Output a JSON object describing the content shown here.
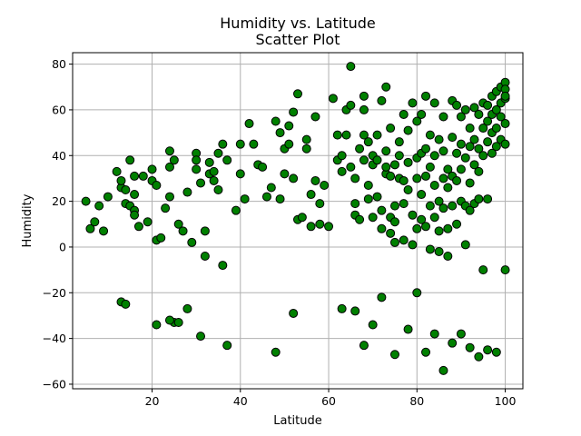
{
  "chart_data": {
    "type": "scatter",
    "title": "Humidity vs. Latitude",
    "subtitle": "Scatter Plot",
    "xlabel": "Latitude",
    "ylabel": "Humidity",
    "xlim": [
      2,
      104
    ],
    "ylim": [
      -62,
      85
    ],
    "xticks": [
      20,
      40,
      60,
      80,
      100
    ],
    "yticks": [
      -60,
      -40,
      -20,
      0,
      20,
      40,
      60,
      80
    ],
    "grid": true,
    "marker_color": "#008000",
    "marker_edge": "#000000",
    "x": [
      5,
      6,
      7,
      8,
      9,
      10,
      12,
      13,
      13,
      14,
      14,
      15,
      15,
      16,
      16,
      16,
      16,
      17,
      18,
      19,
      20,
      20,
      21,
      21,
      22,
      23,
      24,
      24,
      24,
      25,
      25,
      26,
      27,
      28,
      29,
      30,
      30,
      30,
      31,
      32,
      33,
      33,
      34,
      34,
      35,
      35,
      36,
      37,
      39,
      40,
      40,
      41,
      42,
      43,
      44,
      45,
      46,
      47,
      48,
      49,
      49,
      50,
      50,
      51,
      51,
      52,
      52,
      53,
      53,
      54,
      55,
      55,
      56,
      56,
      57,
      57,
      58,
      58,
      59,
      60,
      61,
      62,
      62,
      63,
      63,
      64,
      64,
      65,
      65,
      65,
      66,
      66,
      66,
      67,
      67,
      68,
      68,
      68,
      68,
      69,
      69,
      69,
      70,
      70,
      70,
      71,
      71,
      71,
      72,
      72,
      72,
      73,
      73,
      73,
      73,
      74,
      74,
      74,
      74,
      75,
      75,
      75,
      75,
      76,
      76,
      76,
      77,
      77,
      77,
      77,
      78,
      78,
      78,
      79,
      79,
      79,
      80,
      80,
      80,
      80,
      81,
      81,
      81,
      81,
      82,
      82,
      82,
      82,
      83,
      83,
      83,
      83,
      84,
      84,
      84,
      84,
      85,
      85,
      85,
      85,
      86,
      86,
      86,
      86,
      87,
      87,
      87,
      87,
      88,
      88,
      88,
      88,
      89,
      89,
      89,
      89,
      90,
      90,
      90,
      90,
      91,
      91,
      91,
      91,
      92,
      92,
      92,
      92,
      93,
      93,
      93,
      93,
      94,
      94,
      94,
      94,
      95,
      95,
      95,
      95,
      96,
      96,
      96,
      96,
      97,
      97,
      97,
      97,
      98,
      98,
      98,
      98,
      99,
      99,
      99,
      99,
      100,
      100,
      100,
      100,
      100,
      100,
      13,
      14,
      21,
      24,
      26,
      28,
      31,
      32,
      36,
      37,
      48,
      52,
      63,
      66,
      68,
      70,
      72,
      75,
      78,
      80,
      82,
      84,
      86,
      88,
      90,
      92,
      94,
      96,
      98,
      100
    ],
    "y": [
      20,
      8,
      11,
      18,
      7,
      22,
      33,
      26,
      29,
      19,
      25,
      38,
      18,
      31,
      23,
      16,
      14,
      9,
      31,
      11,
      29,
      34,
      3,
      27,
      4,
      17,
      42,
      22,
      35,
      38,
      -33,
      10,
      7,
      24,
      2,
      34,
      41,
      38,
      28,
      7,
      32,
      37,
      33,
      29,
      41,
      25,
      45,
      38,
      16,
      32,
      45,
      21,
      54,
      45,
      36,
      35,
      22,
      26,
      55,
      50,
      21,
      43,
      32,
      45,
      53,
      30,
      59,
      67,
      12,
      13,
      47,
      43,
      9,
      23,
      29,
      57,
      10,
      19,
      27,
      9,
      65,
      38,
      49,
      33,
      40,
      49,
      60,
      35,
      79,
      62,
      30,
      19,
      14,
      12,
      43,
      49,
      60,
      66,
      38,
      21,
      27,
      46,
      40,
      36,
      13,
      49,
      38,
      22,
      64,
      16,
      8,
      32,
      35,
      42,
      70,
      13,
      52,
      31,
      6,
      36,
      18,
      11,
      2,
      40,
      46,
      30,
      58,
      29,
      19,
      3,
      51,
      37,
      25,
      63,
      14,
      1,
      55,
      39,
      30,
      8,
      58,
      41,
      23,
      12,
      66,
      43,
      31,
      9,
      49,
      35,
      18,
      -1,
      63,
      40,
      27,
      13,
      47,
      20,
      7,
      -2,
      57,
      42,
      30,
      17,
      34,
      26,
      8,
      -4,
      64,
      48,
      31,
      18,
      62,
      41,
      29,
      10,
      57,
      45,
      34,
      20,
      60,
      39,
      18,
      1,
      52,
      44,
      28,
      16,
      61,
      47,
      36,
      19,
      58,
      43,
      33,
      21,
      63,
      52,
      40,
      -10,
      62,
      55,
      46,
      21,
      66,
      58,
      50,
      41,
      68,
      60,
      52,
      44,
      70,
      63,
      57,
      47,
      72,
      69,
      65,
      54,
      66,
      45,
      -24,
      -25,
      -34,
      -32,
      -33,
      -27,
      -39,
      -4,
      -8,
      -43,
      -46,
      -29,
      -27,
      -28,
      -43,
      -34,
      -22,
      -47,
      -36,
      -20,
      -46,
      -38,
      -54,
      -42,
      -38,
      -44,
      -48,
      -45,
      -46,
      -10
    ]
  }
}
